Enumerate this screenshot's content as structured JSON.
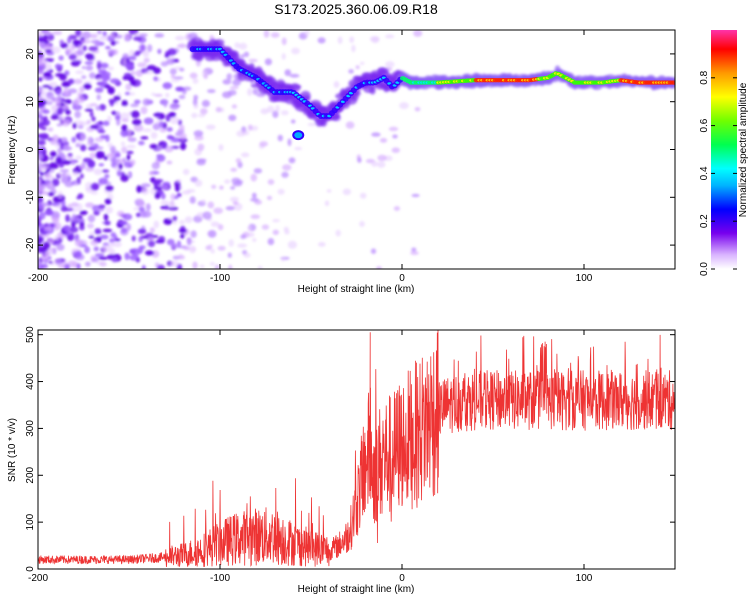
{
  "title": "S173.2025.360.06.09.R18",
  "chart_data": [
    {
      "type": "heatmap",
      "xlabel": "Height of straight line (km)",
      "ylabel": "Frequency (Hz)",
      "xlim": [
        -200,
        150
      ],
      "ylim": [
        -25,
        25
      ],
      "xticks": [
        "-200",
        "-100",
        "0",
        "100"
      ],
      "yticks": [
        "20",
        "10",
        "0",
        "-10",
        "-20"
      ],
      "colorbar": {
        "label": "Normalized spectral amplitude",
        "range": [
          0,
          1
        ],
        "ticks": [
          "0.0",
          "0.2",
          "0.4",
          "0.6",
          "0.8"
        ]
      },
      "ridge": {
        "x": [
          -115,
          -100,
          -90,
          -80,
          -70,
          -60,
          -50,
          -45,
          -40,
          -35,
          -30,
          -25,
          -20,
          -15,
          -10,
          -5,
          0,
          5,
          10,
          20,
          40,
          60,
          70,
          80,
          85,
          90,
          95,
          100,
          110,
          120,
          130,
          150
        ],
        "y": [
          21,
          21,
          17,
          15,
          12,
          12,
          9,
          7,
          7,
          9,
          11,
          13,
          14,
          14,
          15,
          13,
          15,
          14,
          14,
          14,
          14.5,
          14.5,
          14.5,
          15,
          16,
          15,
          14,
          14,
          14,
          14.5,
          14,
          14
        ]
      },
      "spot": {
        "x": -57,
        "y": 3
      }
    },
    {
      "type": "line",
      "xlabel": "Height of straight line (km)",
      "ylabel": "SNR (10 * v/v)",
      "xlim": [
        -200,
        150
      ],
      "ylim": [
        0,
        510
      ],
      "xticks": [
        "-200",
        "-100",
        "0",
        "100"
      ],
      "yticks": [
        "0",
        "100",
        "200",
        "300",
        "400",
        "500"
      ],
      "color": "#ee3333",
      "envelope": {
        "x": [
          -200,
          -150,
          -130,
          -120,
          -110,
          -100,
          -90,
          -80,
          -70,
          -60,
          -50,
          -40,
          -35,
          -30,
          -28,
          -25,
          -22,
          -20,
          -18,
          -15,
          -12,
          -10,
          -5,
          0,
          5,
          10,
          15,
          20,
          25,
          30,
          40,
          50,
          60,
          70,
          80,
          90,
          100,
          110,
          120,
          130,
          140,
          150
        ],
        "y": [
          20,
          20,
          25,
          30,
          40,
          55,
          65,
          70,
          70,
          55,
          45,
          40,
          50,
          70,
          90,
          140,
          190,
          230,
          250,
          200,
          230,
          240,
          245,
          270,
          280,
          295,
          320,
          340,
          350,
          355,
          360,
          360,
          360,
          360,
          360,
          360,
          360,
          360,
          360,
          360,
          360,
          360
        ]
      }
    }
  ]
}
